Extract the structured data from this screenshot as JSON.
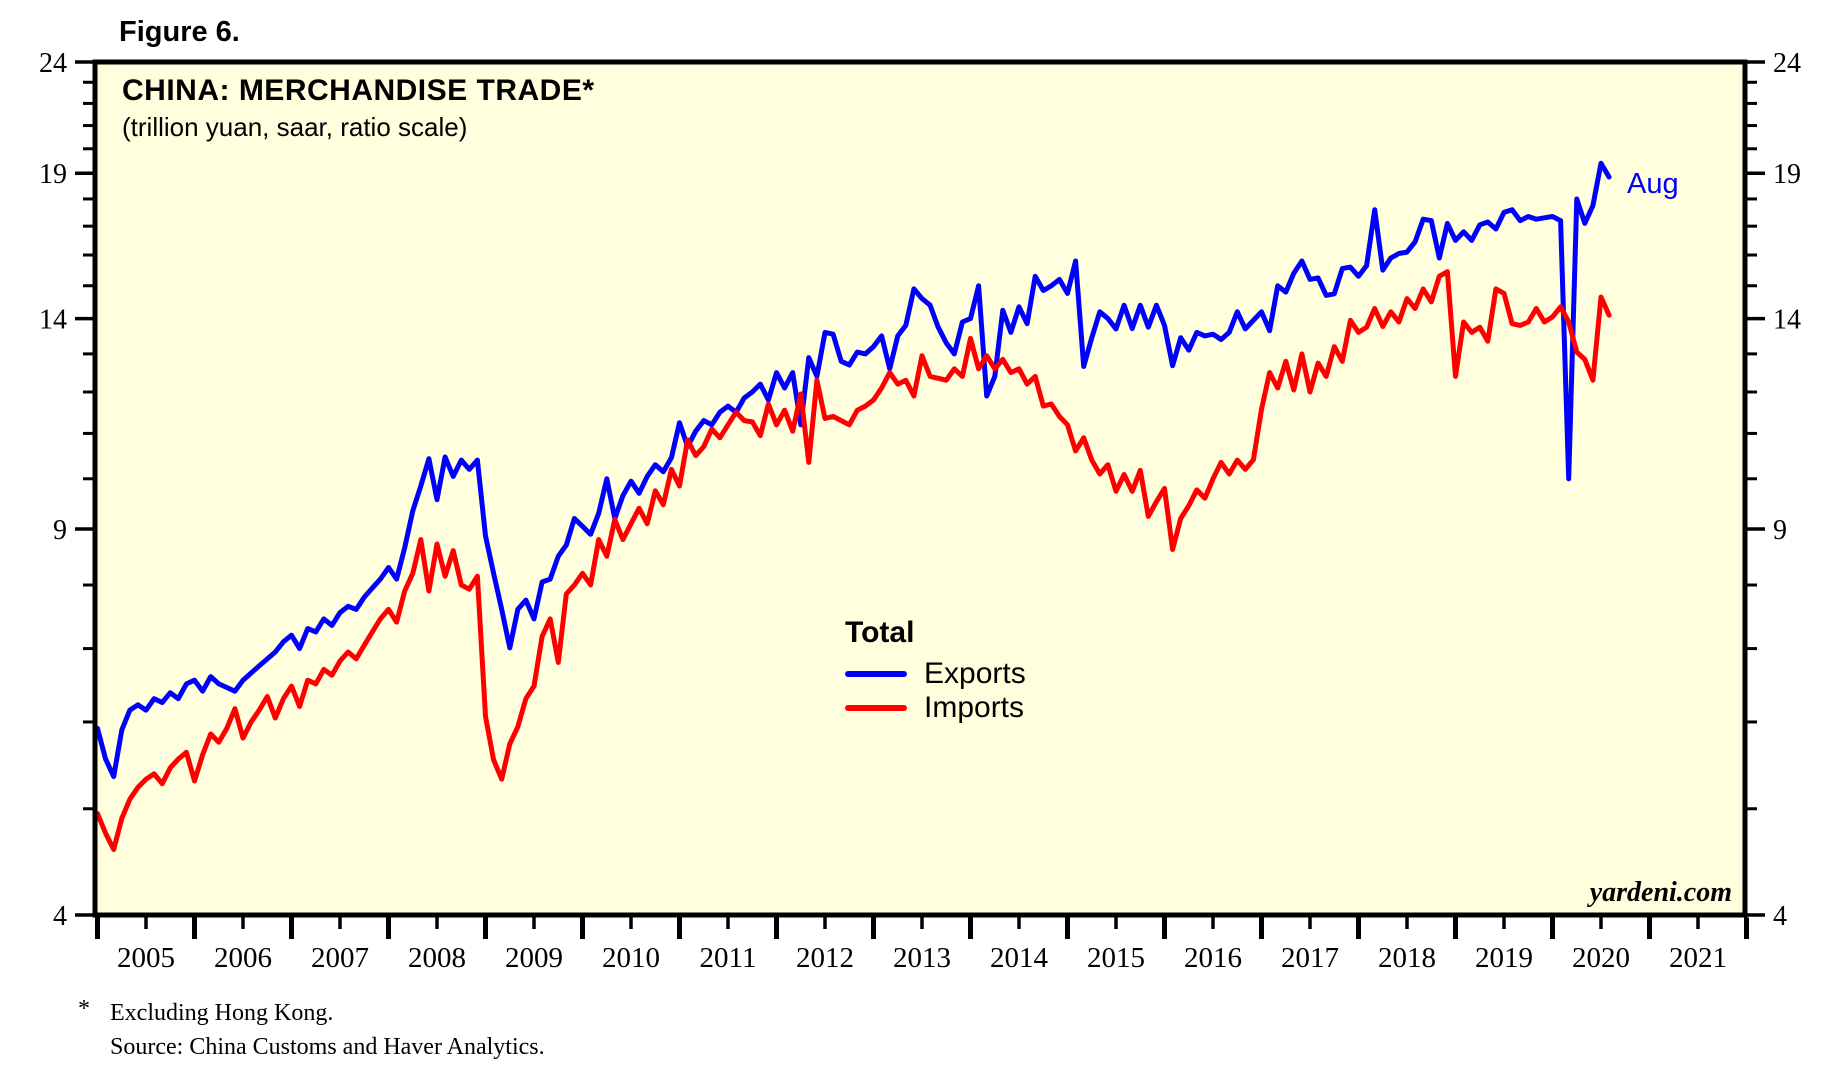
{
  "figure_label": "Figure 6.",
  "chart": {
    "title": "CHINA: MERCHANDISE TRADE*",
    "subtitle": "(trillion yuan, saar, ratio scale)",
    "watermark": "yardeni.com",
    "end_label": "Aug",
    "legend": {
      "heading": "Total",
      "series": [
        {
          "label": "Exports",
          "color": "#0000FF"
        },
        {
          "label": "Imports",
          "color": "#FF0000"
        }
      ]
    },
    "colors": {
      "plot_background": "#FFFFDE",
      "frame": "#000000",
      "tick_text": "#000000",
      "export_line": "#0000FF",
      "import_line": "#FF0000",
      "end_label_color": "#0000FF"
    },
    "y_axis": {
      "scale": "log",
      "min": 4,
      "max": 24,
      "major_ticks": [
        24,
        19,
        14,
        9,
        4
      ],
      "minor_ticks": [
        23,
        22,
        21,
        20,
        18,
        17,
        16,
        15,
        13,
        12,
        11,
        10,
        8,
        7,
        6,
        5
      ]
    },
    "x_axis": {
      "first_year": 2005,
      "axis_end_year": 2022,
      "labels": [
        "2005",
        "2006",
        "2007",
        "2008",
        "2009",
        "2010",
        "2011",
        "2012",
        "2013",
        "2014",
        "2015",
        "2016",
        "2017",
        "2018",
        "2019",
        "2020",
        "2021"
      ]
    }
  },
  "chart_data": {
    "type": "line",
    "title": "CHINA: MERCHANDISE TRADE*",
    "subtitle": "(trillion yuan, saar, ratio scale)",
    "xlabel": "",
    "ylabel": "trillion yuan, saar",
    "ylim": [
      4,
      24
    ],
    "yscale": "log",
    "grid": false,
    "legend_position": "center",
    "frequency": "monthly",
    "x_start": "2005-01",
    "x_end": "2020-08",
    "series": [
      {
        "name": "Exports",
        "color": "#0000FF",
        "values": [
          5.92,
          5.55,
          5.35,
          5.9,
          6.15,
          6.22,
          6.15,
          6.3,
          6.25,
          6.38,
          6.3,
          6.5,
          6.55,
          6.4,
          6.6,
          6.5,
          6.45,
          6.4,
          6.55,
          6.65,
          6.75,
          6.85,
          6.95,
          7.1,
          7.2,
          7.0,
          7.3,
          7.25,
          7.45,
          7.35,
          7.55,
          7.65,
          7.6,
          7.8,
          7.95,
          8.1,
          8.3,
          8.1,
          8.65,
          9.35,
          9.85,
          10.43,
          9.57,
          10.47,
          10.05,
          10.4,
          10.2,
          10.4,
          8.87,
          8.2,
          7.6,
          7.01,
          7.6,
          7.75,
          7.45,
          8.05,
          8.1,
          8.5,
          8.7,
          9.2,
          9.05,
          8.9,
          9.3,
          10.0,
          9.2,
          9.65,
          9.95,
          9.7,
          10.05,
          10.3,
          10.15,
          10.45,
          11.25,
          10.7,
          11.05,
          11.3,
          11.2,
          11.5,
          11.65,
          11.5,
          11.85,
          12.0,
          12.2,
          11.8,
          12.5,
          12.1,
          12.5,
          11.2,
          12.9,
          12.4,
          13.6,
          13.55,
          12.8,
          12.7,
          13.05,
          13.0,
          13.2,
          13.5,
          12.6,
          13.5,
          13.8,
          14.9,
          14.6,
          14.4,
          13.75,
          13.3,
          13.0,
          13.9,
          14.0,
          15.0,
          11.9,
          12.4,
          14.25,
          13.6,
          14.35,
          13.85,
          15.3,
          14.85,
          15.0,
          15.2,
          14.76,
          15.8,
          12.66,
          13.45,
          14.2,
          14.0,
          13.7,
          14.4,
          13.71,
          14.4,
          13.75,
          14.4,
          13.8,
          12.68,
          13.45,
          13.1,
          13.6,
          13.5,
          13.55,
          13.4,
          13.6,
          14.2,
          13.7,
          13.95,
          14.2,
          13.65,
          15.0,
          14.8,
          15.4,
          15.8,
          15.2,
          15.25,
          14.7,
          14.75,
          15.55,
          15.6,
          15.3,
          15.65,
          17.6,
          15.5,
          15.9,
          16.05,
          16.1,
          16.45,
          17.25,
          17.2,
          15.9,
          17.1,
          16.5,
          16.8,
          16.5,
          17.05,
          17.15,
          16.9,
          17.5,
          17.6,
          17.2,
          17.35,
          17.25,
          17.3,
          17.35,
          17.2,
          10.0,
          18.0,
          17.1,
          17.75,
          19.4,
          18.85
        ]
      },
      {
        "name": "Imports",
        "color": "#FF0000",
        "values": [
          4.95,
          4.75,
          4.59,
          4.9,
          5.1,
          5.23,
          5.32,
          5.38,
          5.27,
          5.45,
          5.55,
          5.63,
          5.3,
          5.6,
          5.85,
          5.75,
          5.92,
          6.17,
          5.8,
          6.0,
          6.15,
          6.33,
          6.05,
          6.3,
          6.47,
          6.2,
          6.55,
          6.5,
          6.7,
          6.62,
          6.82,
          6.95,
          6.85,
          7.05,
          7.25,
          7.45,
          7.6,
          7.4,
          7.9,
          8.2,
          8.8,
          7.9,
          8.72,
          8.15,
          8.6,
          8.0,
          7.93,
          8.15,
          6.07,
          5.54,
          5.32,
          5.73,
          5.94,
          6.3,
          6.47,
          7.18,
          7.45,
          6.8,
          7.85,
          8.0,
          8.2,
          8.0,
          8.8,
          8.5,
          9.18,
          8.8,
          9.1,
          9.4,
          9.1,
          9.75,
          9.47,
          10.2,
          9.85,
          10.85,
          10.5,
          10.7,
          11.1,
          10.9,
          11.2,
          11.5,
          11.3,
          11.27,
          10.95,
          11.7,
          11.2,
          11.55,
          11.05,
          11.95,
          10.35,
          12.3,
          11.35,
          11.4,
          11.3,
          11.2,
          11.55,
          11.65,
          11.8,
          12.1,
          12.5,
          12.2,
          12.3,
          11.9,
          12.95,
          12.4,
          12.35,
          12.3,
          12.6,
          12.4,
          13.43,
          12.6,
          12.95,
          12.6,
          12.85,
          12.5,
          12.6,
          12.2,
          12.4,
          11.65,
          11.7,
          11.4,
          11.2,
          10.6,
          10.9,
          10.4,
          10.1,
          10.3,
          9.74,
          10.09,
          9.74,
          10.18,
          9.24,
          9.53,
          9.8,
          8.62,
          9.2,
          9.45,
          9.77,
          9.6,
          10.0,
          10.35,
          10.1,
          10.4,
          10.2,
          10.41,
          11.57,
          12.5,
          12.1,
          12.8,
          12.05,
          13.0,
          12.0,
          12.75,
          12.4,
          13.2,
          12.8,
          13.95,
          13.6,
          13.75,
          14.3,
          13.77,
          14.2,
          13.9,
          14.6,
          14.3,
          14.9,
          14.5,
          15.3,
          15.45,
          12.4,
          13.9,
          13.6,
          13.75,
          13.35,
          14.9,
          14.76,
          13.85,
          13.8,
          13.9,
          14.3,
          13.9,
          14.05,
          14.35,
          13.9,
          13.05,
          12.85,
          12.3,
          14.65,
          14.1
        ]
      }
    ]
  },
  "footnotes": {
    "marker": "*",
    "line1": "Excluding Hong Kong.",
    "line2": "Source: China Customs and Haver Analytics."
  }
}
